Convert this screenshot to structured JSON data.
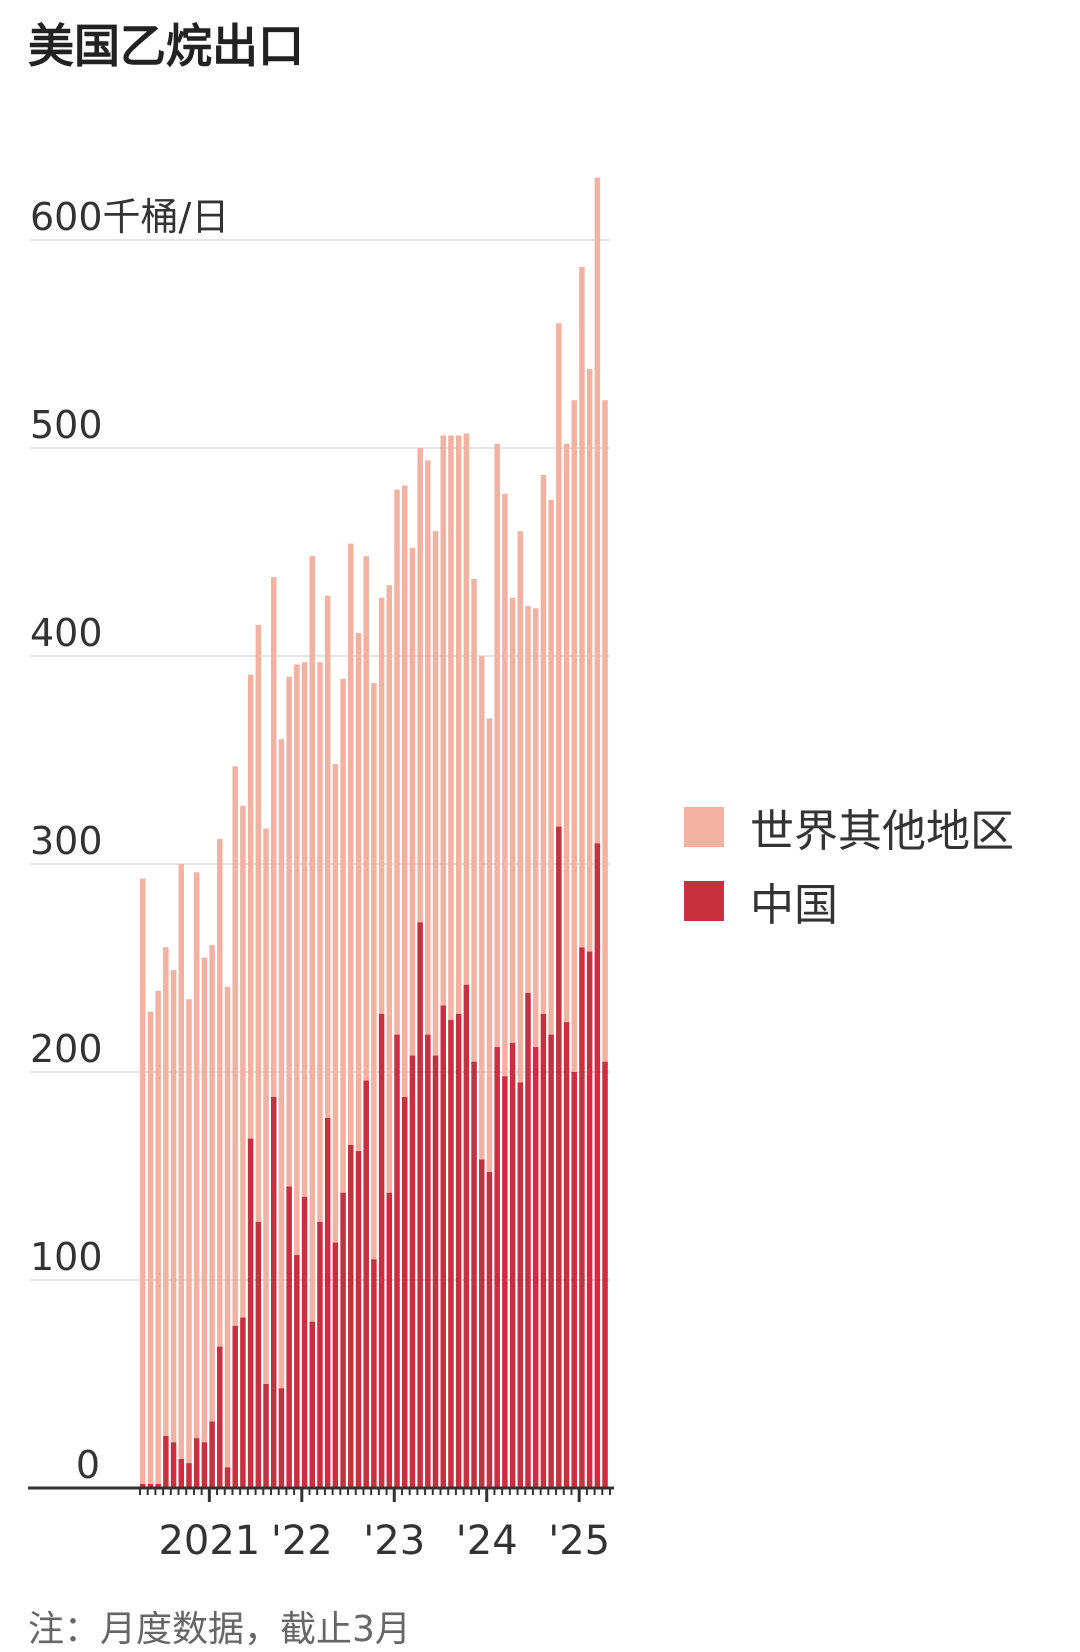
{
  "title": "美国乙烷出口",
  "note": "注：月度数据，截止3月",
  "chart_data": {
    "type": "bar",
    "stacked": true,
    "title": "美国乙烷出口",
    "ylabel": "千桶/日",
    "ylim": [
      0,
      660
    ],
    "yticks": [
      0,
      100,
      200,
      300,
      400,
      500,
      600
    ],
    "ytick_labels": [
      "0",
      "100",
      "200",
      "300",
      "400",
      "500",
      "600千桶/日"
    ],
    "xtick_labels": [
      "2021",
      "'22",
      "'23",
      "'24",
      "'25"
    ],
    "xtick_month_index": [
      9,
      21,
      33,
      45,
      57
    ],
    "grid": true,
    "legend_position": "right",
    "colors": {
      "rest": "#f3b1a2",
      "china": "#c8303f",
      "gridline": "#e6e6e6",
      "axis": "#333333"
    },
    "series": [
      {
        "name": "中国",
        "color": "#c8303f",
        "values": [
          2,
          2,
          2,
          25,
          22,
          14,
          12,
          24,
          22,
          32,
          68,
          10,
          78,
          82,
          168,
          128,
          50,
          188,
          48,
          145,
          112,
          140,
          80,
          128,
          178,
          118,
          142,
          165,
          162,
          196,
          110,
          228,
          142,
          218,
          188,
          208,
          272,
          218,
          208,
          232,
          225,
          228,
          242,
          205,
          158,
          152,
          212,
          198,
          214,
          195,
          238,
          212,
          228,
          218,
          318,
          224,
          200,
          260,
          258,
          310,
          205
        ]
      },
      {
        "name": "世界其他地区",
        "color": "#f3b1a2",
        "values": [
          291,
          227,
          237,
          235,
          227,
          286,
          223,
          272,
          233,
          229,
          244,
          231,
          269,
          246,
          223,
          287,
          267,
          250,
          312,
          245,
          284,
          257,
          368,
          269,
          251,
          230,
          247,
          289,
          249,
          252,
          277,
          200,
          292,
          262,
          294,
          244,
          228,
          276,
          252,
          274,
          281,
          278,
          265,
          232,
          242,
          218,
          290,
          280,
          214,
          265,
          186,
          211,
          259,
          257,
          242,
          278,
          323,
          327,
          280,
          320,
          318
        ]
      }
    ]
  }
}
